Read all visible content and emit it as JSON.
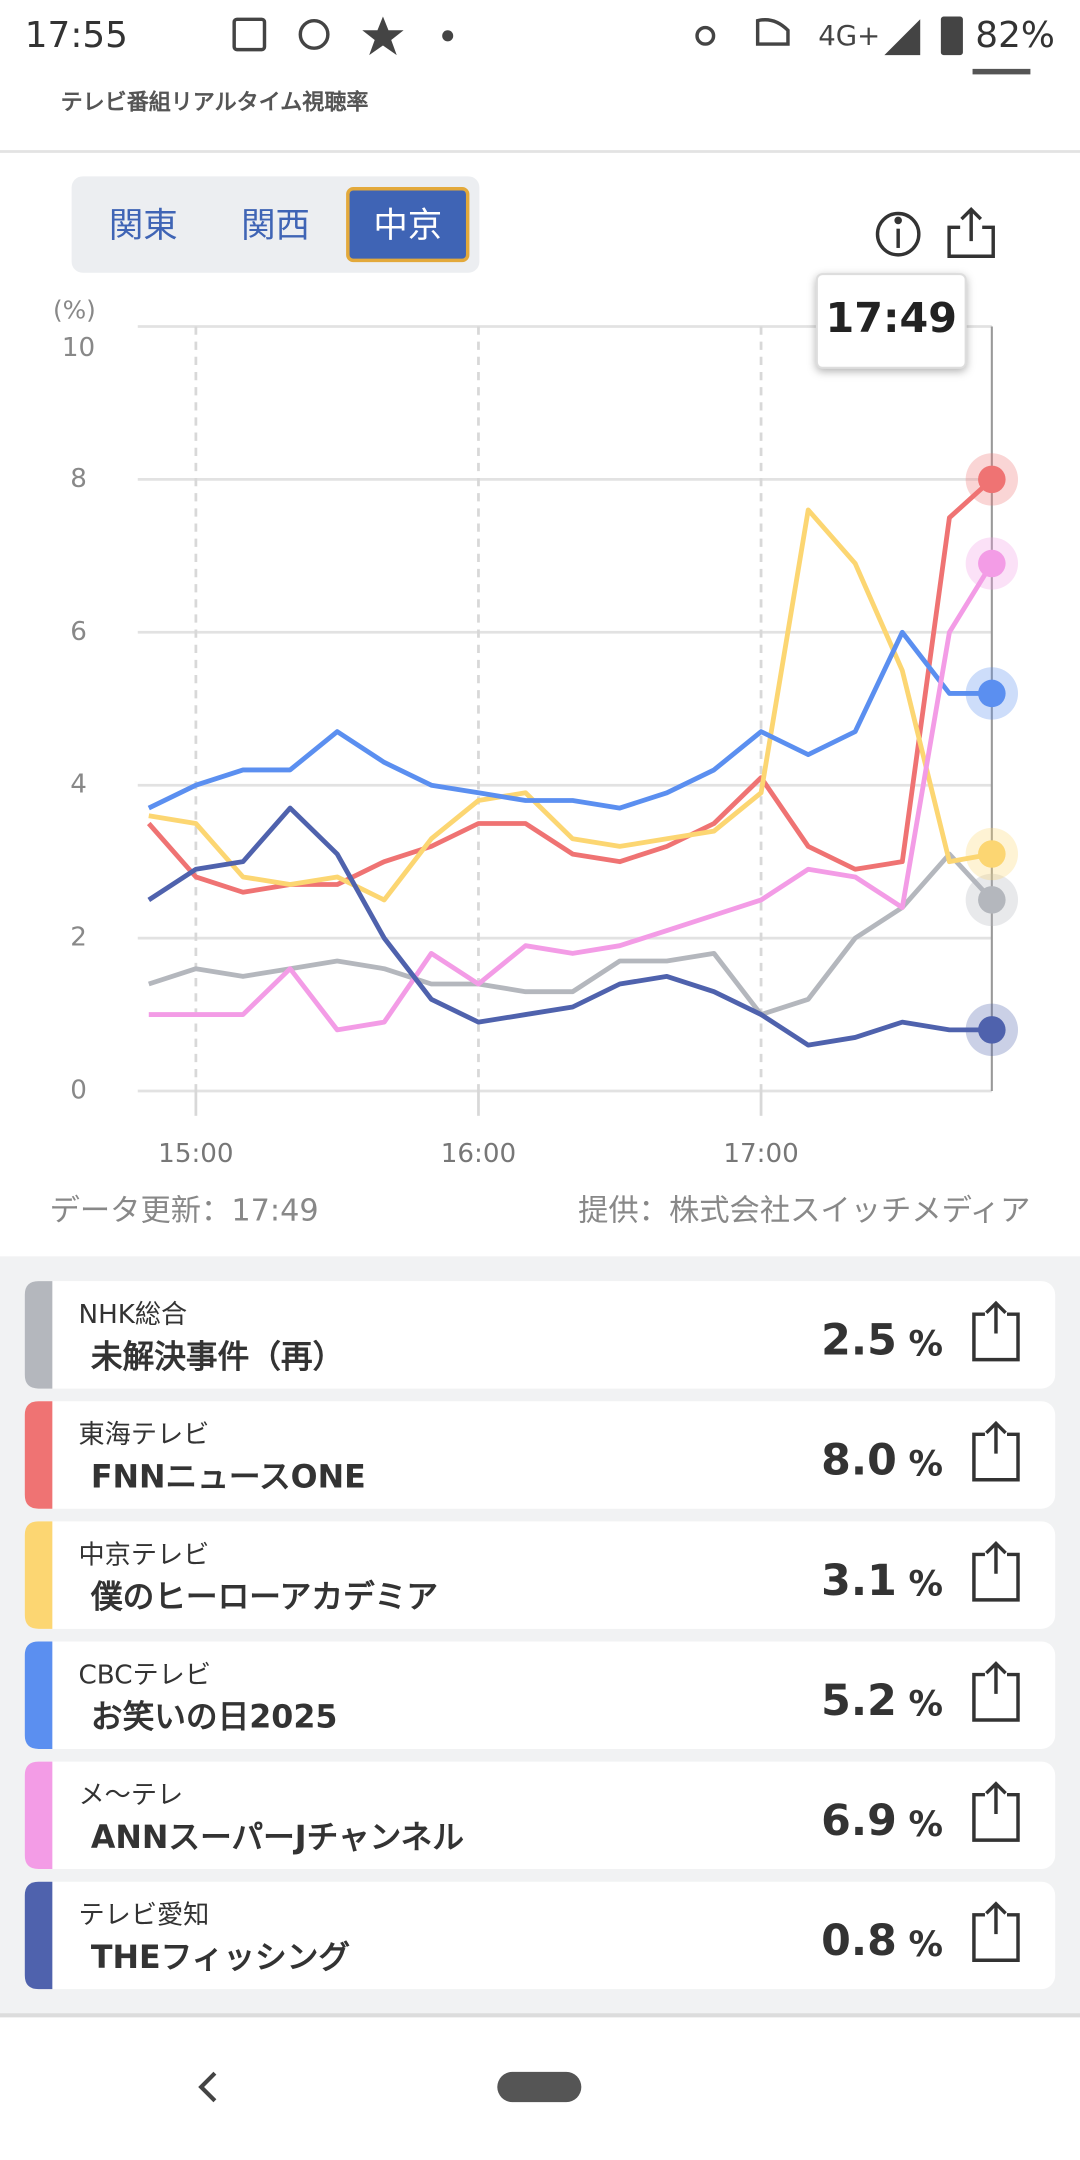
{
  "status_bar": {
    "time": "17:55",
    "network": "4G+",
    "battery": "82%"
  },
  "header": {
    "subtitle": "テレビ番組リアルタイム視聴率"
  },
  "region_tabs": [
    "関東",
    "関西",
    "中京"
  ],
  "selected_tab": 2,
  "chart_data": {
    "type": "line",
    "y_label": "(%)",
    "annotation": "17:49",
    "x": [
      890,
      900,
      910,
      920,
      930,
      940,
      950,
      960,
      970,
      980,
      990,
      1000,
      1010,
      1020,
      1030,
      1040,
      1050,
      1060,
      1069
    ],
    "xlim": [
      890,
      1069
    ],
    "xticks": [
      {
        "value": 900,
        "label": "15:00"
      },
      {
        "value": 960,
        "label": "16:00"
      },
      {
        "value": 1020,
        "label": "17:00"
      }
    ],
    "ylim": [
      0,
      10
    ],
    "yticks": [
      0,
      2,
      4,
      6,
      8,
      10
    ],
    "grid": true,
    "series": [
      {
        "name": "NHK総合",
        "color": "#b4b7bd",
        "values": [
          1.4,
          1.6,
          1.5,
          1.6,
          1.7,
          1.6,
          1.4,
          1.4,
          1.3,
          1.3,
          1.7,
          1.7,
          1.8,
          1.0,
          1.2,
          2.0,
          2.4,
          3.1,
          2.5
        ]
      },
      {
        "name": "東海テレビ",
        "color": "#ef7373",
        "values": [
          3.5,
          2.8,
          2.6,
          2.7,
          2.7,
          3.0,
          3.2,
          3.5,
          3.5,
          3.1,
          3.0,
          3.2,
          3.5,
          4.1,
          3.2,
          2.9,
          3.0,
          7.5,
          8.0
        ]
      },
      {
        "name": "中京テレビ",
        "color": "#fcd672",
        "values": [
          3.6,
          3.5,
          2.8,
          2.7,
          2.8,
          2.5,
          3.3,
          3.8,
          3.9,
          3.3,
          3.2,
          3.3,
          3.4,
          3.9,
          7.6,
          6.9,
          5.5,
          3.0,
          3.1
        ]
      },
      {
        "name": "CBCテレビ",
        "color": "#5b8ff0",
        "values": [
          3.7,
          4.0,
          4.2,
          4.2,
          4.7,
          4.3,
          4.0,
          3.9,
          3.8,
          3.8,
          3.7,
          3.9,
          4.2,
          4.7,
          4.4,
          4.7,
          6.0,
          5.2,
          5.2
        ]
      },
      {
        "name": "メ〜テレ",
        "color": "#f39ce6",
        "values": [
          1.0,
          1.0,
          1.0,
          1.6,
          0.8,
          0.9,
          1.8,
          1.4,
          1.9,
          1.8,
          1.9,
          2.1,
          2.3,
          2.5,
          2.9,
          2.8,
          2.4,
          6.0,
          6.9
        ]
      },
      {
        "name": "テレビ愛知",
        "color": "#4f62ad",
        "values": [
          2.5,
          2.9,
          3.0,
          3.7,
          3.1,
          2.0,
          1.2,
          0.9,
          1.0,
          1.1,
          1.4,
          1.5,
          1.3,
          1.0,
          0.6,
          0.7,
          0.9,
          0.8,
          0.8
        ]
      }
    ]
  },
  "updated": "データ更新：17:49",
  "provider": "提供：株式会社スイッチメディア",
  "rating_unit": "%",
  "channels": [
    {
      "program": "未解決事件（再）",
      "rating": "2.5"
    },
    {
      "program": "FNNニュースONE",
      "rating": "8.0"
    },
    {
      "program": "僕のヒーローアカデミア",
      "rating": "3.1"
    },
    {
      "program": "お笑いの日2025",
      "rating": "5.2"
    },
    {
      "program": "ANNスーパーJチャンネル",
      "rating": "6.9"
    },
    {
      "program": "THEフィッシング",
      "rating": "0.8"
    }
  ]
}
